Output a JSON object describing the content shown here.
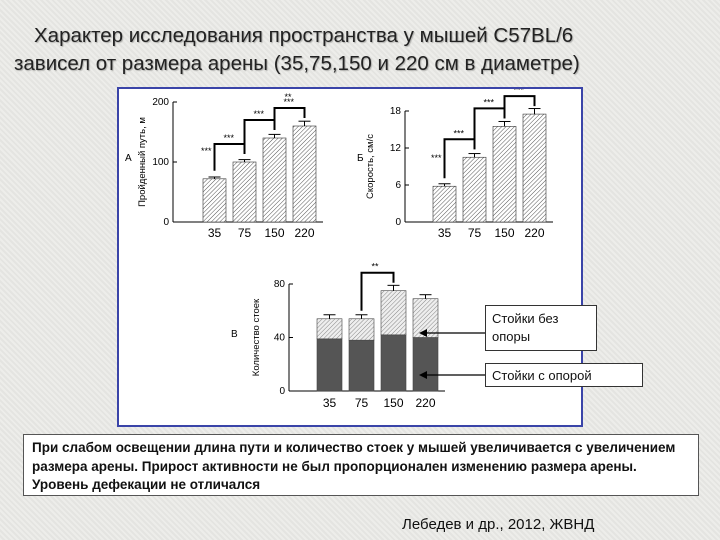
{
  "title": {
    "line1": "Характер исследования пространства у мышей C57BL/6",
    "line2": "зависел от размера арены (35,75,150 и 220 см в диаметре)"
  },
  "chart_data": [
    {
      "type": "bar",
      "panel_label": "А",
      "ylabel": "Пройденный путь, м",
      "categories": [
        "35",
        "75",
        "150",
        "220"
      ],
      "values": [
        72,
        100,
        140,
        160
      ],
      "errors": [
        3,
        4,
        6,
        8
      ],
      "ylim": [
        0,
        200
      ],
      "yticks": [
        0,
        100,
        200
      ],
      "sig_marks": [
        "***",
        "***",
        "***",
        "**"
      ],
      "colors": {
        "fill": "#ffffff",
        "hatch": "#444444"
      }
    },
    {
      "type": "bar",
      "panel_label": "Б",
      "ylabel": "Скорость, см/с",
      "categories": [
        "35",
        "75",
        "150",
        "220"
      ],
      "values": [
        5.8,
        10.5,
        15.5,
        17.5
      ],
      "errors": [
        0.4,
        0.6,
        0.8,
        0.9
      ],
      "ylim": [
        0,
        18
      ],
      "yticks": [
        0,
        6,
        12,
        18
      ],
      "sig_marks": [
        "***",
        "***",
        "***",
        "**"
      ],
      "colors": {
        "fill": "#ffffff",
        "hatch": "#444444"
      }
    },
    {
      "type": "bar",
      "stacked": true,
      "panel_label": "В",
      "ylabel": "Количество стоек",
      "categories": [
        "35",
        "75",
        "150",
        "220"
      ],
      "series": [
        {
          "name": "Стойки с опорой",
          "values": [
            39,
            38,
            42,
            40
          ],
          "color": "#555555"
        },
        {
          "name": "Стойки без опоры",
          "values": [
            15,
            16,
            33,
            29
          ],
          "color": "#cccccc"
        }
      ],
      "errors": [
        3,
        3,
        4,
        3
      ],
      "ylim": [
        0,
        80
      ],
      "yticks": [
        0,
        40,
        80
      ],
      "sig_marks": [
        "**"
      ]
    }
  ],
  "callouts": {
    "unsupported": "Стойки без опоры",
    "supported": "Стойки с опорой"
  },
  "summary": "При слабом освещении длина пути и количество стоек у мышей увеличивается с увеличением размера арены. Прирост активности не был пропорционален изменению размера арены. Уровень дефекации не отличался",
  "citation": "Лебедев и др., 2012, ЖВНД"
}
